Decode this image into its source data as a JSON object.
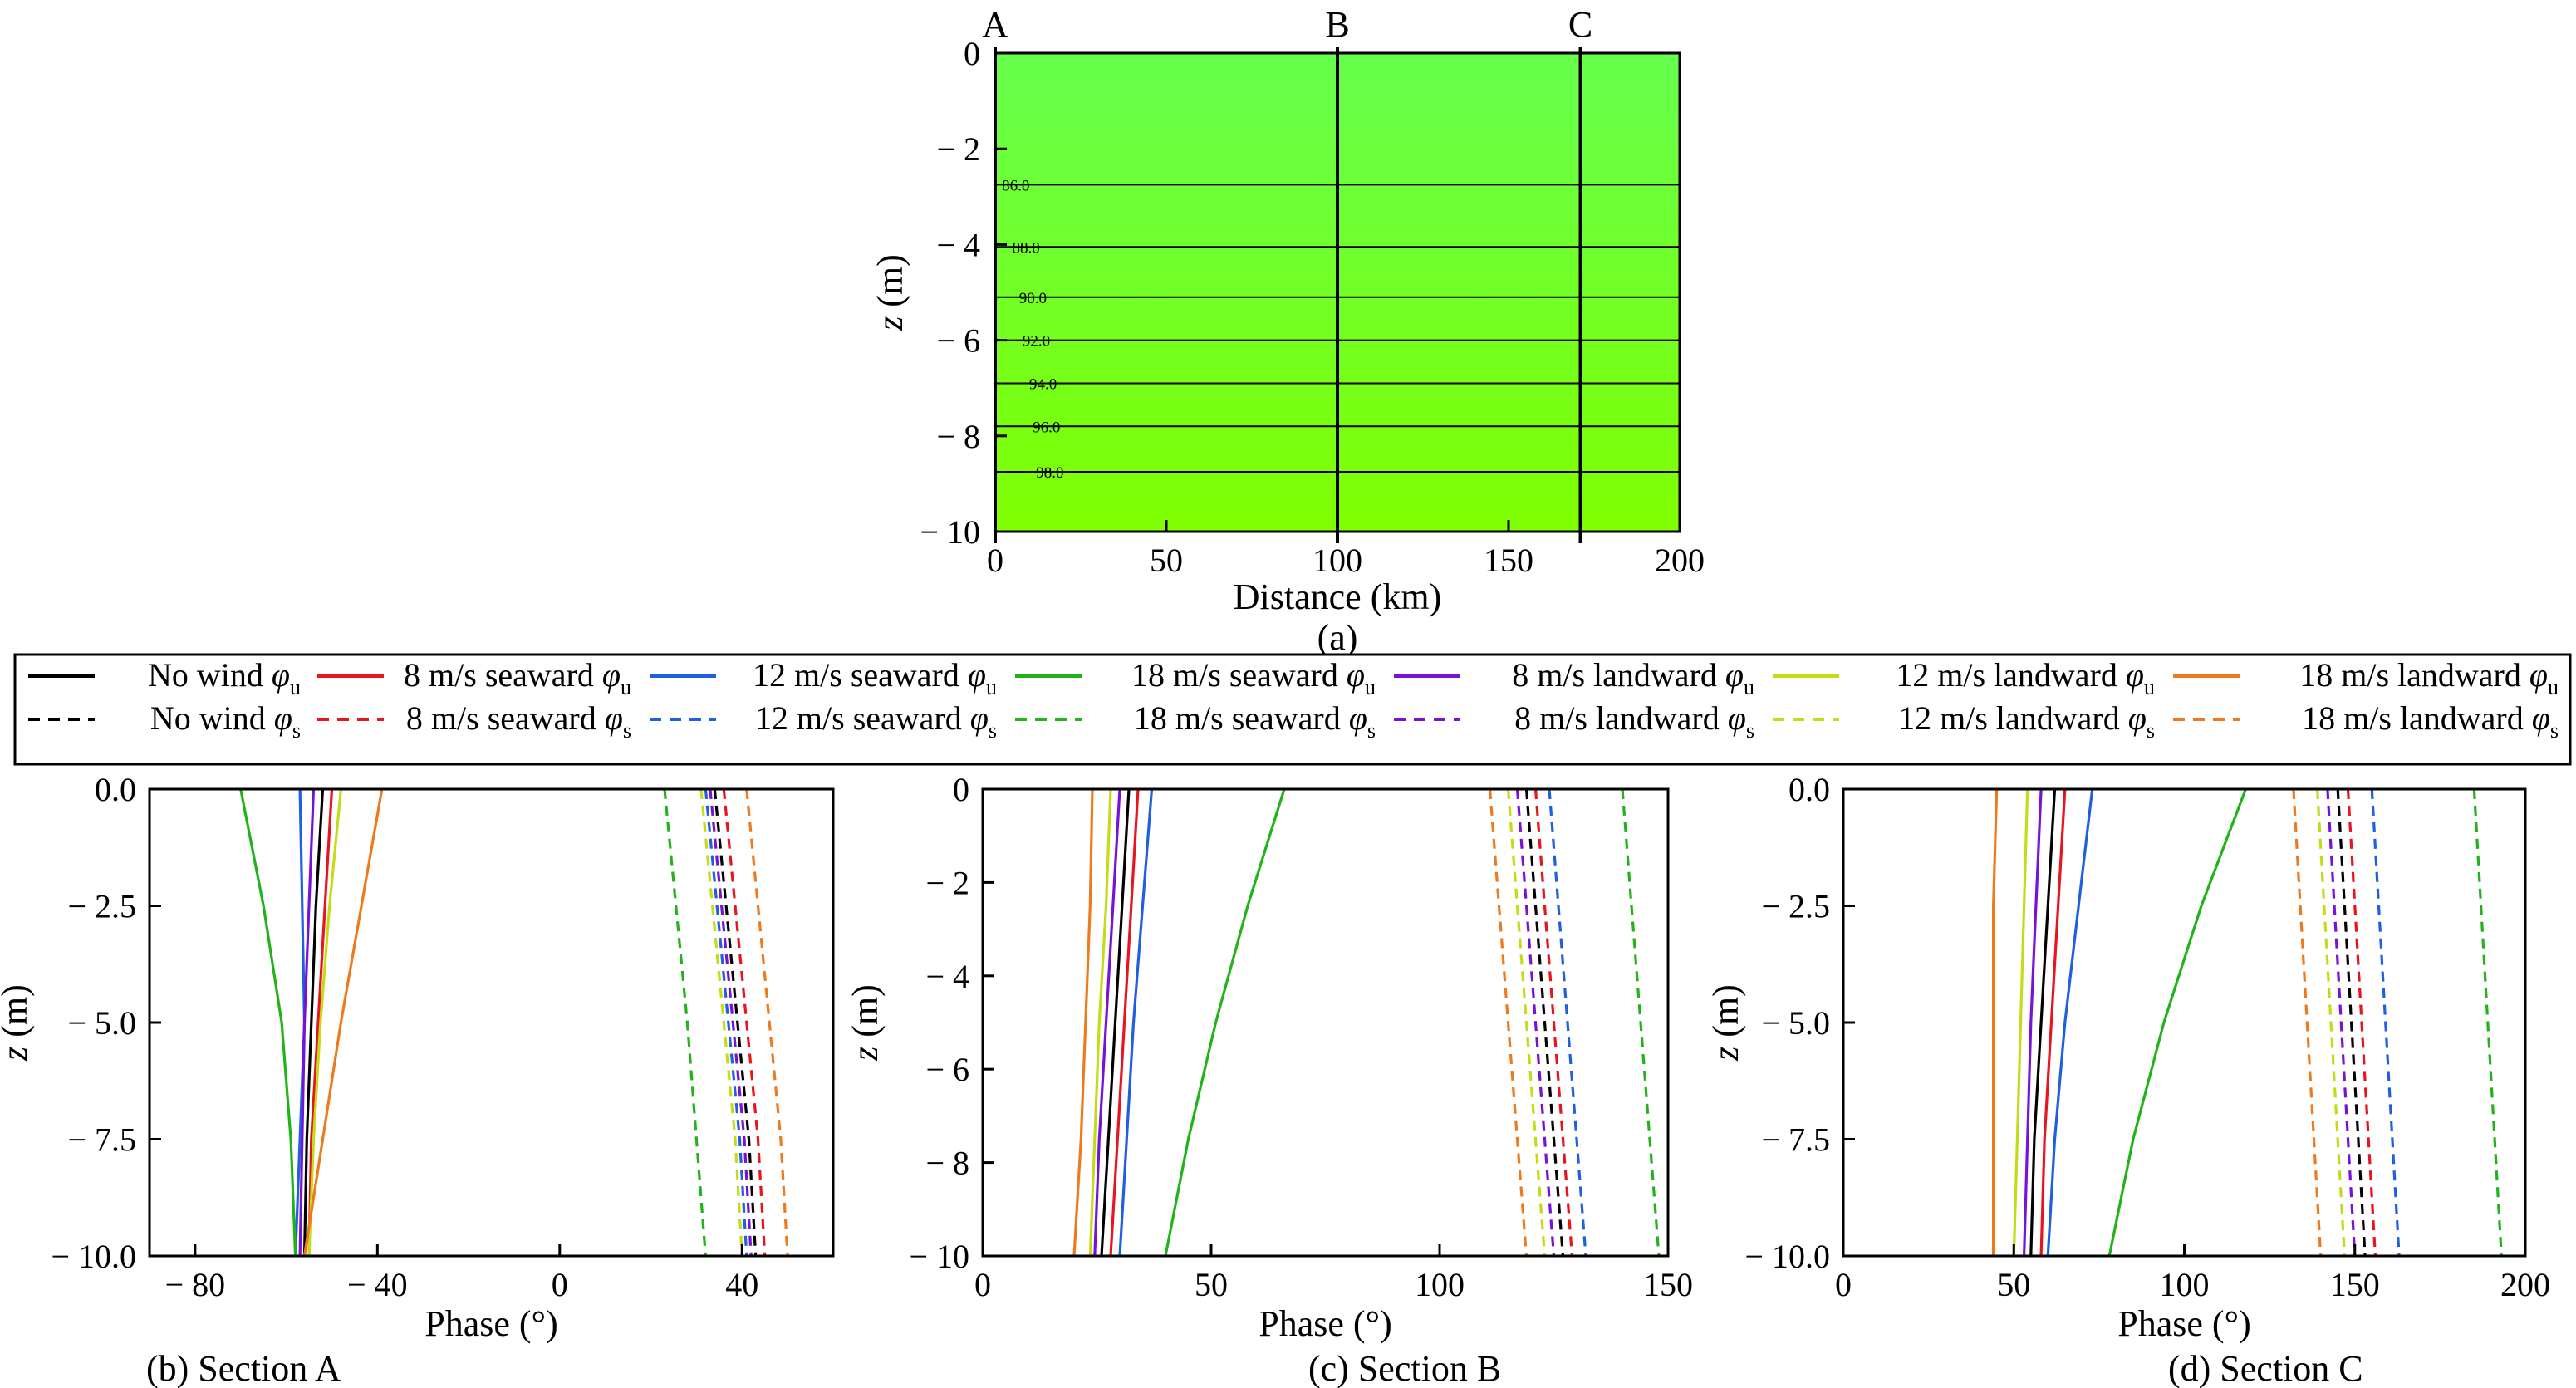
{
  "chart_data": [
    {
      "type": "heatmap",
      "panel_label": "(a)",
      "xlabel": "Distance (km)",
      "ylabel_var": "z",
      "ylabel_unit": " (m)",
      "xlim": [
        0,
        200
      ],
      "ylim": [
        -10,
        0
      ],
      "xticks": [
        0,
        50,
        100,
        150,
        200
      ],
      "yticks": [
        0,
        -2,
        -4,
        -6,
        -8,
        -10
      ],
      "ytick_labels": [
        "0",
        "− 2",
        "− 4",
        "− 6",
        "− 8",
        "− 10"
      ],
      "sections": [
        {
          "name": "A",
          "x": 0
        },
        {
          "name": "B",
          "x": 100
        },
        {
          "name": "C",
          "x": 171
        }
      ],
      "contours": [
        {
          "label": "86.0",
          "z": -2.75,
          "label_x": 6
        },
        {
          "label": "88.0",
          "z": -4.05,
          "label_x": 9
        },
        {
          "label": "90.0",
          "z": -5.1,
          "label_x": 11
        },
        {
          "label": "92.0",
          "z": -6.0,
          "label_x": 12
        },
        {
          "label": "94.0",
          "z": -6.9,
          "label_x": 14
        },
        {
          "label": "96.0",
          "z": -7.8,
          "label_x": 15
        },
        {
          "label": "98.0",
          "z": -8.75,
          "label_x": 16
        }
      ],
      "colors": {
        "top": "#66ff4d",
        "bottom": "#7fff00"
      }
    },
    {
      "type": "line",
      "panel_label": "(b)  Section A",
      "xlabel": "Phase (°)",
      "ylabel_var": "z",
      "ylabel_unit": " (m)",
      "xlim": [
        -90,
        60
      ],
      "ylim": [
        -10,
        0
      ],
      "xticks": [
        -80,
        -40,
        0,
        40
      ],
      "xtick_labels": [
        "− 80",
        "− 40",
        "0",
        "40"
      ],
      "yticks": [
        0,
        -2.5,
        -5,
        -7.5,
        -10
      ],
      "ytick_labels": [
        "0.0",
        "− 2.5",
        "− 5.0",
        "− 7.5",
        "− 10.0"
      ],
      "z": [
        0,
        -2.5,
        -5,
        -7.5,
        -10
      ],
      "series": [
        {
          "name": "No wind φu",
          "values": [
            -52,
            -53.5,
            -54.5,
            -55.5,
            -56
          ]
        },
        {
          "name": "8 m/s seaward φu",
          "values": [
            -50,
            -51.5,
            -53,
            -54.5,
            -55
          ]
        },
        {
          "name": "12 m/s seaward φu",
          "values": [
            -57,
            -56.5,
            -56,
            -57,
            -58
          ]
        },
        {
          "name": "18 m/s seaward φu",
          "values": [
            -70,
            -65,
            -61,
            -59,
            -58
          ]
        },
        {
          "name": "8 m/s landward φu",
          "values": [
            -54,
            -55,
            -56,
            -56.5,
            -57
          ]
        },
        {
          "name": "12 m/s landward φu",
          "values": [
            -48,
            -50.5,
            -52.5,
            -54,
            -55
          ]
        },
        {
          "name": "18 m/s landward φu",
          "values": [
            -39,
            -43.5,
            -48,
            -52,
            -56
          ]
        },
        {
          "name": "No wind φs",
          "values": [
            34,
            36.5,
            39,
            41.5,
            43
          ]
        },
        {
          "name": "8 m/s seaward φs",
          "values": [
            36,
            38.5,
            41,
            43.5,
            45
          ]
        },
        {
          "name": "12 m/s seaward φs",
          "values": [
            32,
            34.5,
            37,
            39.5,
            41
          ]
        },
        {
          "name": "18 m/s seaward φs",
          "values": [
            23,
            25.5,
            28,
            30,
            32
          ]
        },
        {
          "name": "8 m/s landward φs",
          "values": [
            33,
            35.5,
            38,
            40.5,
            42
          ]
        },
        {
          "name": "12 m/s landward φs",
          "values": [
            31,
            33.5,
            36,
            38.5,
            40
          ]
        },
        {
          "name": "18 m/s landward φs",
          "values": [
            41,
            43.5,
            46,
            48.5,
            50
          ]
        }
      ]
    },
    {
      "type": "line",
      "panel_label": "(c)  Section B",
      "xlabel": "Phase (°)",
      "ylabel_var": "z",
      "ylabel_unit": " (m)",
      "xlim": [
        0,
        150
      ],
      "ylim": [
        -10,
        0
      ],
      "xticks": [
        0,
        50,
        100,
        150
      ],
      "xtick_labels": [
        "0",
        "50",
        "100",
        "150"
      ],
      "yticks": [
        0,
        -2,
        -4,
        -6,
        -8,
        -10
      ],
      "ytick_labels": [
        "0",
        "− 2",
        "− 4",
        "− 6",
        "− 8",
        "− 10"
      ],
      "z": [
        0,
        -2.5,
        -5,
        -7.5,
        -10
      ],
      "series": [
        {
          "name": "No wind φu",
          "values": [
            32,
            30.5,
            29,
            27.5,
            26
          ]
        },
        {
          "name": "8 m/s seaward φu",
          "values": [
            34,
            32.5,
            31,
            29.5,
            28
          ]
        },
        {
          "name": "12 m/s seaward φu",
          "values": [
            37,
            35,
            33,
            31.5,
            30
          ]
        },
        {
          "name": "18 m/s seaward φu",
          "values": [
            66,
            58,
            51,
            45,
            40
          ]
        },
        {
          "name": "8 m/s landward φu",
          "values": [
            30,
            28.5,
            27,
            25.5,
            24.5
          ]
        },
        {
          "name": "12 m/s landward φu",
          "values": [
            28,
            27,
            25.5,
            24.5,
            23.5
          ]
        },
        {
          "name": "18 m/s landward φu",
          "values": [
            24,
            23.5,
            22.5,
            21.5,
            20
          ]
        },
        {
          "name": "No wind φs",
          "values": [
            119,
            121,
            123,
            125,
            127
          ]
        },
        {
          "name": "8 m/s seaward φs",
          "values": [
            121,
            123,
            125,
            127,
            129
          ]
        },
        {
          "name": "12 m/s seaward φs",
          "values": [
            124,
            126,
            128,
            130,
            132
          ]
        },
        {
          "name": "18 m/s seaward φs",
          "values": [
            140,
            142,
            144,
            146,
            148
          ]
        },
        {
          "name": "8 m/s landward φs",
          "values": [
            117,
            119,
            121,
            123,
            125
          ]
        },
        {
          "name": "12 m/s landward φs",
          "values": [
            115,
            117,
            119,
            121,
            123
          ]
        },
        {
          "name": "18 m/s landward φs",
          "values": [
            111,
            113,
            115,
            117,
            119
          ]
        }
      ]
    },
    {
      "type": "line",
      "panel_label": "(d)  Section C",
      "xlabel": "Phase (°)",
      "ylabel_var": "z",
      "ylabel_unit": " (m)",
      "xlim": [
        0,
        200
      ],
      "ylim": [
        -10,
        0
      ],
      "xticks": [
        0,
        50,
        100,
        150,
        200
      ],
      "xtick_labels": [
        "0",
        "50",
        "100",
        "150",
        "200"
      ],
      "yticks": [
        0,
        -2.5,
        -5,
        -7.5,
        -10
      ],
      "ytick_labels": [
        "0.0",
        "− 2.5",
        "− 5.0",
        "− 7.5",
        "− 10.0"
      ],
      "z": [
        0,
        -2.5,
        -5,
        -7.5,
        -10
      ],
      "series": [
        {
          "name": "No wind φu",
          "values": [
            62,
            60,
            58,
            56,
            55
          ]
        },
        {
          "name": "8 m/s seaward φu",
          "values": [
            65,
            63,
            61,
            59,
            58
          ]
        },
        {
          "name": "12 m/s seaward φu",
          "values": [
            73,
            69,
            65,
            62,
            60
          ]
        },
        {
          "name": "18 m/s seaward φu",
          "values": [
            118,
            105,
            94,
            85,
            78
          ]
        },
        {
          "name": "8 m/s landward φu",
          "values": [
            58,
            56.5,
            55,
            54,
            53
          ]
        },
        {
          "name": "12 m/s landward φu",
          "values": [
            54,
            53,
            52,
            51,
            50
          ]
        },
        {
          "name": "18 m/s landward φu",
          "values": [
            45,
            44,
            44,
            44,
            44
          ]
        },
        {
          "name": "No wind φs",
          "values": [
            145,
            147,
            149,
            151,
            153
          ]
        },
        {
          "name": "8 m/s seaward φs",
          "values": [
            148,
            150,
            152,
            154,
            156
          ]
        },
        {
          "name": "12 m/s seaward φs",
          "values": [
            155,
            157,
            159,
            161,
            163
          ]
        },
        {
          "name": "18 m/s seaward φs",
          "values": [
            185,
            187,
            189,
            191,
            193
          ]
        },
        {
          "name": "8 m/s landward φs",
          "values": [
            142,
            144,
            146,
            148,
            150
          ]
        },
        {
          "name": "12 m/s landward φs",
          "values": [
            139,
            141,
            143,
            145,
            147
          ]
        },
        {
          "name": "18 m/s landward φs",
          "values": [
            132,
            134,
            136,
            138,
            140
          ]
        }
      ]
    }
  ],
  "legend": {
    "columns": [
      {
        "color": "#000000",
        "line1_text": "No wind ",
        "line2_text": "No wind "
      },
      {
        "color": "#e8141e",
        "line1_text": "8 m/s seaward ",
        "line2_text": "8 m/s seaward "
      },
      {
        "color": "#1f5fe0",
        "line1_text": "12 m/s seaward ",
        "line2_text": "12 m/s seaward "
      },
      {
        "color": "#22b21a",
        "line1_text": "18 m/s seaward ",
        "line2_text": "18 m/s seaward "
      },
      {
        "color": "#7a12d6",
        "line1_text": "8 m/s landward ",
        "line2_text": "8 m/s landward "
      },
      {
        "color": "#c4dc16",
        "line1_text": "12 m/s landward ",
        "line2_text": "12 m/s landward "
      },
      {
        "color": "#ee7a1e",
        "line1_text": "18 m/s landward ",
        "line2_text": "18 m/s landward "
      }
    ],
    "symbol": "φ",
    "sub_u": "u",
    "sub_s": "s"
  }
}
